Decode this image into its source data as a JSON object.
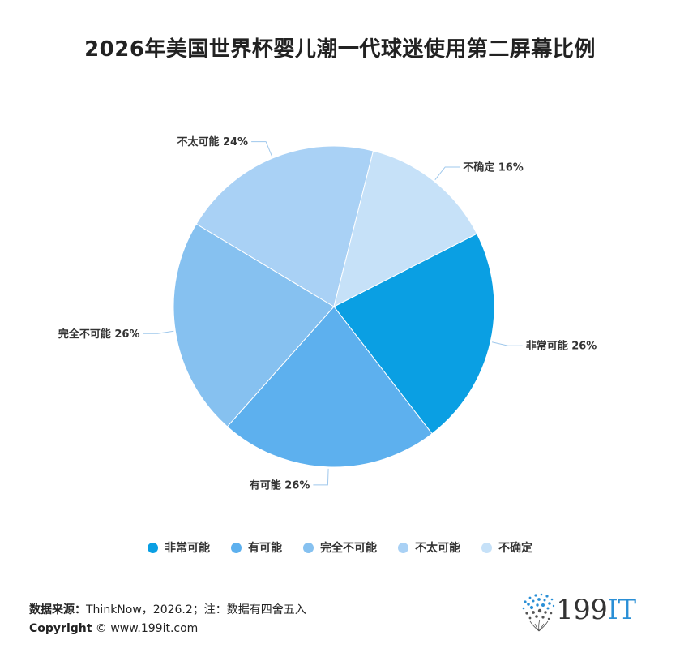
{
  "title": "2026年美国世界杯婴儿潮一代球迷使用第二屏幕比例",
  "chart_data": {
    "type": "pie",
    "title": "2026年美国世界杯婴儿潮一代球迷使用第二屏幕比例",
    "start_angle_deg": -27,
    "direction": "clockwise",
    "legend_position": "bottom",
    "slices": [
      {
        "name": "非常可能",
        "value": 26,
        "label": "非常可能 26%",
        "color": "#0a9fe3"
      },
      {
        "name": "有可能",
        "value": 26,
        "label": "有可能 26%",
        "color": "#5db0ee"
      },
      {
        "name": "完全不可能",
        "value": 26,
        "label": "完全不可能 26%",
        "color": "#86c1f0"
      },
      {
        "name": "不太可能",
        "value": 24,
        "label": "不太可能 24%",
        "color": "#a9d1f5"
      },
      {
        "name": "不确定",
        "value": 16,
        "label": "不确定 16%",
        "color": "#c6e1f8"
      }
    ]
  },
  "legend": [
    {
      "label": "非常可能",
      "color": "#0a9fe3"
    },
    {
      "label": "有可能",
      "color": "#5db0ee"
    },
    {
      "label": "完全不可能",
      "color": "#86c1f0"
    },
    {
      "label": "不太可能",
      "color": "#a9d1f5"
    },
    {
      "label": "不确定",
      "color": "#c6e1f8"
    }
  ],
  "footer": {
    "source_label": "数据来源：",
    "source_text": "ThinkNow，2026.2；注：数据有四舍五入",
    "copyright_label": "Copyright",
    "copyright_text": "© www.199it.com"
  },
  "logo": {
    "text_main": "199",
    "text_accent": "IT",
    "icon": "dandelion-dots-icon",
    "accent_color": "#2a8fd6"
  }
}
